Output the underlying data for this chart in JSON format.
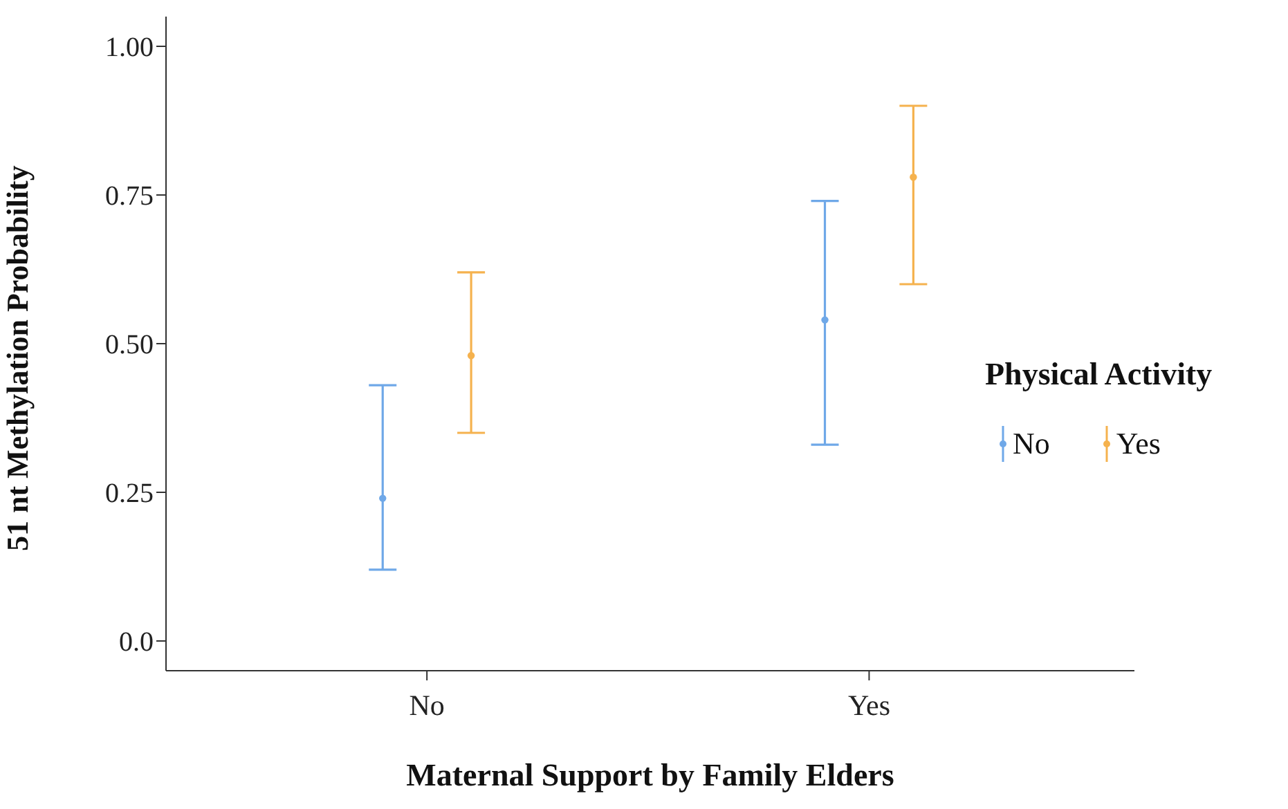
{
  "chart_data": {
    "type": "scatter",
    "xlabel": "Maternal Support by Family Elders",
    "ylabel": "51 nt Methylation Probability",
    "legend_title": "Physical Activity",
    "categories": [
      "No",
      "Yes"
    ],
    "series": [
      {
        "name": "No",
        "color": "#6fa8e8",
        "values": [
          0.24,
          0.54
        ],
        "errors": [
          [
            0.12,
            0.43
          ],
          [
            0.33,
            0.74
          ]
        ]
      },
      {
        "name": "Yes",
        "color": "#f5b24e",
        "values": [
          0.48,
          0.78
        ],
        "errors": [
          [
            0.35,
            0.62
          ],
          [
            0.6,
            0.9
          ]
        ]
      }
    ],
    "ylim": [
      -0.05,
      1.05
    ],
    "yticks": [
      {
        "value": 0,
        "label": "0.0"
      },
      {
        "value": 0.25,
        "label": "0.25"
      },
      {
        "value": 0.5,
        "label": "0.50"
      },
      {
        "value": 0.75,
        "label": "0.75"
      },
      {
        "value": 1,
        "label": "1.00"
      }
    ],
    "grid": false,
    "legend": "right",
    "marker": "circle"
  }
}
